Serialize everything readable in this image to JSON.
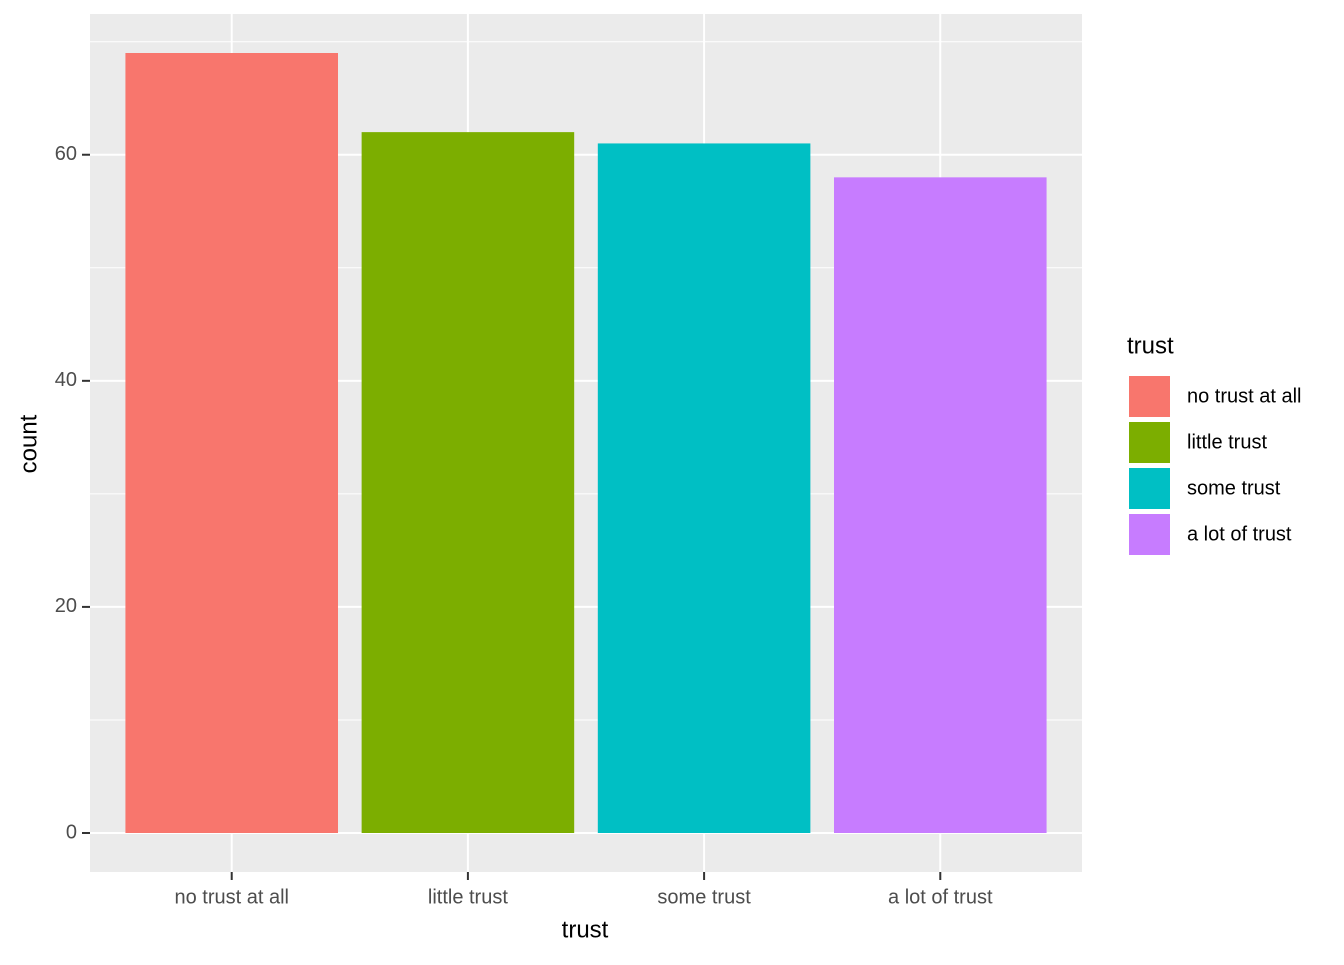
{
  "chart_data": {
    "type": "bar",
    "x_label": "trust",
    "y_label": "count",
    "categories": [
      "no trust at all",
      "little trust",
      "some trust",
      "a lot of trust"
    ],
    "values": [
      69,
      62,
      61,
      58
    ],
    "colors": [
      "#f8766d",
      "#7cae00",
      "#00bfc4",
      "#c77cff"
    ],
    "ylim": [
      -3.45,
      72.45
    ],
    "yticks": [
      0,
      20,
      40,
      60
    ],
    "yminor": [
      10,
      30,
      50,
      70
    ],
    "grid": true,
    "legend": {
      "title": "trust",
      "position": "right"
    }
  }
}
